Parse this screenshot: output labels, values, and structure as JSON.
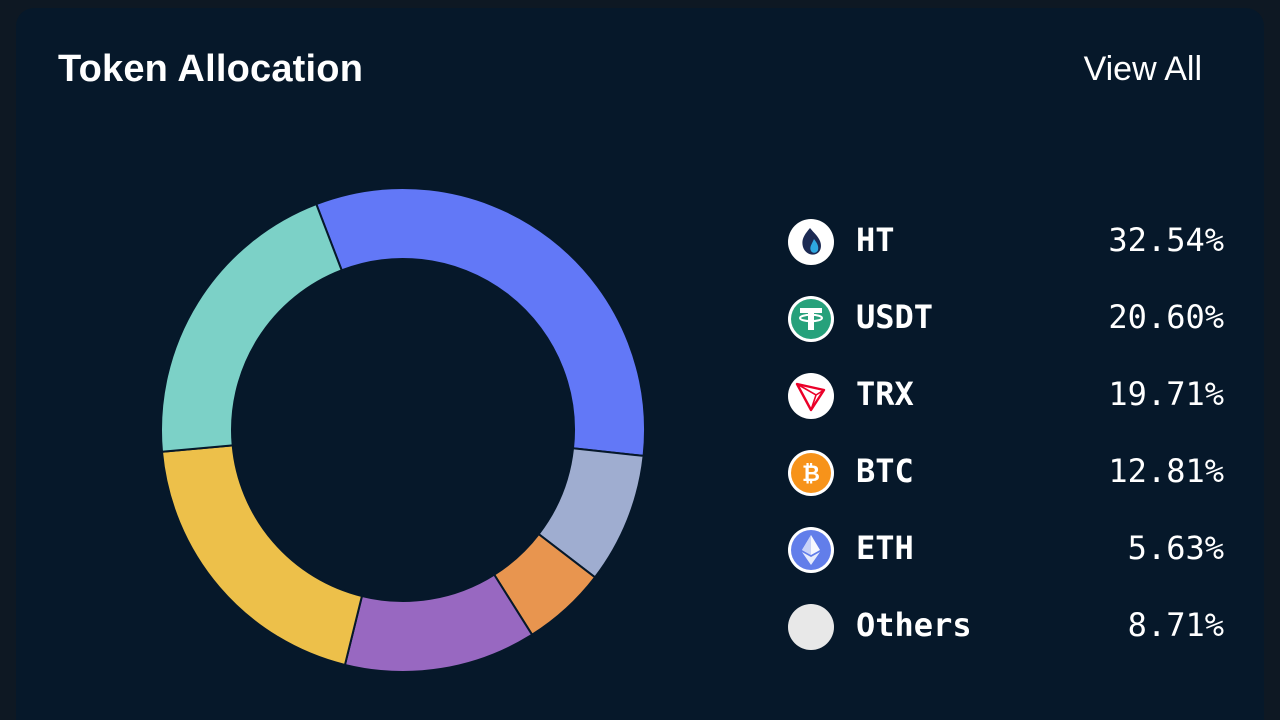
{
  "header": {
    "title": "Token Allocation",
    "view_all": "View All"
  },
  "chart_data": {
    "type": "pie",
    "style": "donut",
    "start": "12 o'clock area, clockwise",
    "categories": [
      "HT",
      "USDT",
      "TRX",
      "BTC",
      "ETH",
      "Others"
    ],
    "values": [
      32.54,
      20.6,
      19.71,
      12.81,
      5.63,
      8.71
    ],
    "labels": [
      "32.54%",
      "20.60%",
      "19.71%",
      "12.81%",
      "5.63%",
      "8.71%"
    ],
    "legend": "right",
    "slice_order_clockwise": [
      "HT",
      "Others",
      "ETH",
      "BTC",
      "TRX",
      "USDT"
    ],
    "colors": {
      "HT": "#6278f7",
      "Others": "#9fadd0",
      "ETH": "#e8954f",
      "BTC": "#9868c1",
      "TRX": "#edc04a",
      "USDT": "#7cd1c7"
    },
    "icons": {
      "HT": "huobi-token-icon",
      "USDT": "tether-icon",
      "TRX": "tron-icon",
      "BTC": "bitcoin-icon",
      "ETH": "ethereum-icon",
      "Others": "others-icon"
    }
  }
}
